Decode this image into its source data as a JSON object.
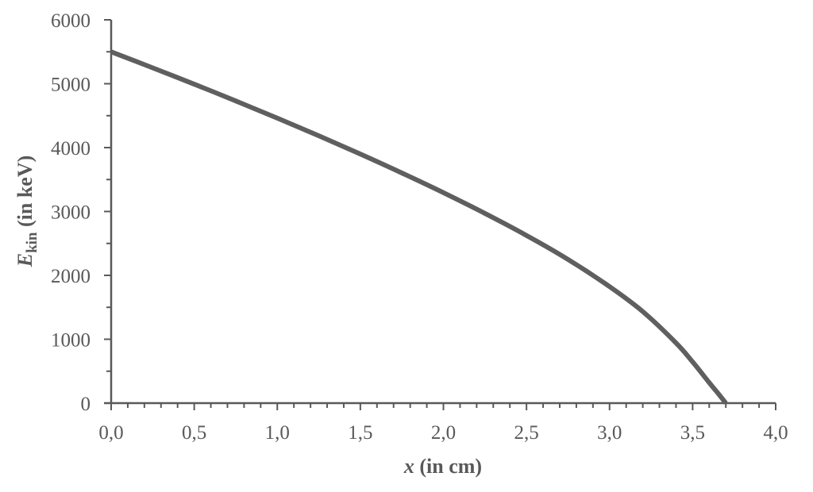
{
  "chart_data": {
    "type": "line",
    "title": "",
    "xlabel": "x (in cm)",
    "xlabel_parts": {
      "var": "x",
      "unit": " (in cm)"
    },
    "ylabel": "E_kin (in keV)",
    "ylabel_parts": {
      "var": "E",
      "sub": "kin",
      "unit": " (in keV)"
    },
    "xlim": [
      0,
      4.0
    ],
    "ylim": [
      0,
      6000
    ],
    "x_ticks": [
      "0,0",
      "0,5",
      "1,0",
      "1,5",
      "2,0",
      "2,5",
      "3,0",
      "3,5",
      "4,0"
    ],
    "x_tick_values": [
      0,
      0.5,
      1.0,
      1.5,
      2.0,
      2.5,
      3.0,
      3.5,
      4.0
    ],
    "x_minor_step": 0.1,
    "y_ticks": [
      "0",
      "1000",
      "2000",
      "3000",
      "4000",
      "5000",
      "6000"
    ],
    "y_tick_values": [
      0,
      1000,
      2000,
      3000,
      4000,
      5000,
      6000
    ],
    "y_minor_step": 500,
    "grid": false,
    "legend": null,
    "series": [
      {
        "name": "E_kin",
        "color": "#5f5f5f",
        "x": [
          0.0,
          0.25,
          0.5,
          0.75,
          1.0,
          1.25,
          1.5,
          1.75,
          2.0,
          2.25,
          2.5,
          2.75,
          3.0,
          3.2,
          3.4,
          3.5,
          3.6,
          3.65,
          3.7
        ],
        "y": [
          5500,
          5249,
          4993,
          4731,
          4461,
          4185,
          3899,
          3603,
          3294,
          2970,
          2625,
          2250,
          1824,
          1433,
          943,
          645,
          320,
          163,
          0
        ]
      }
    ]
  }
}
